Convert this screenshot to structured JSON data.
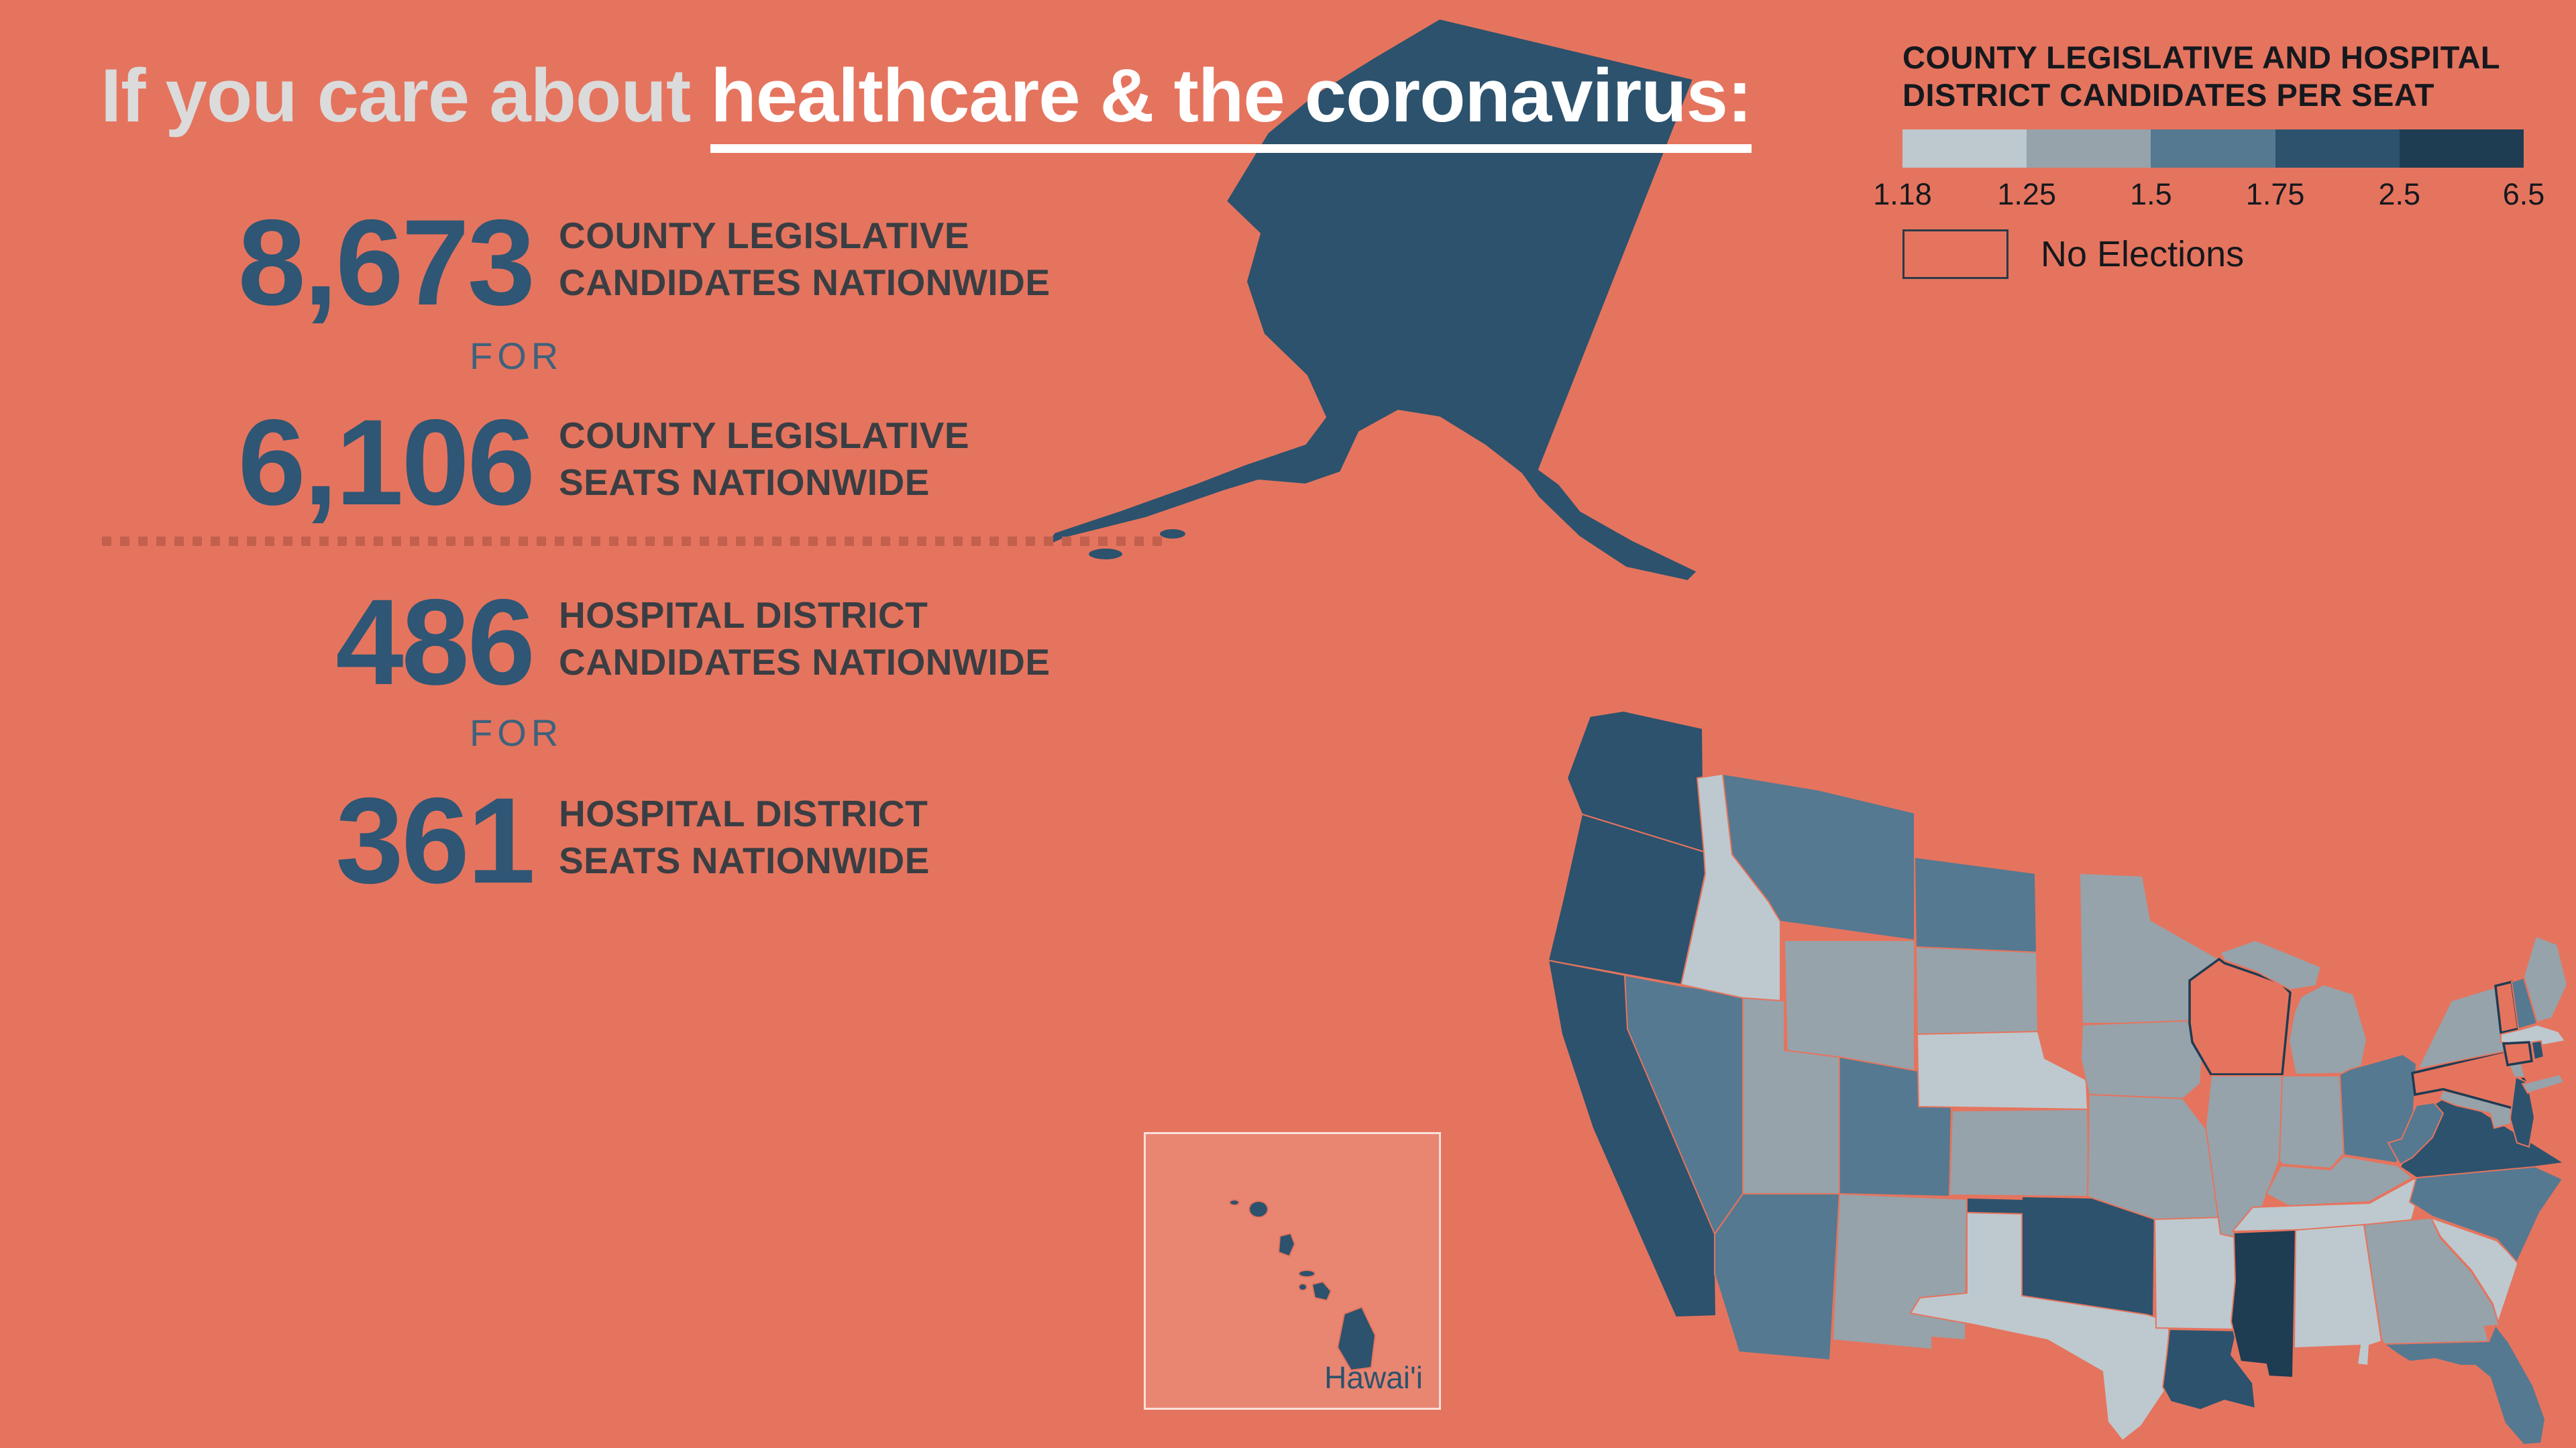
{
  "title": {
    "prefix": "If you care about ",
    "emphasis": "healthcare & the coronavirus:"
  },
  "stats": [
    {
      "value": "8,673",
      "label_line1": "COUNTY LEGISLATIVE",
      "label_line2": "CANDIDATES NATIONWIDE"
    },
    {
      "value": "6,106",
      "label_line1": "COUNTY LEGISLATIVE",
      "label_line2": "SEATS NATIONWIDE"
    },
    {
      "value": "486",
      "label_line1": "HOSPITAL DISTRICT",
      "label_line2": "CANDIDATES NATIONWIDE"
    },
    {
      "value": "361",
      "label_line1": "HOSPITAL DISTRICT",
      "label_line2": "SEATS NATIONWIDE"
    }
  ],
  "connector": "FOR",
  "legend": {
    "title_line1": "COUNTY LEGISLATIVE AND HOSPITAL",
    "title_line2": "DISTRICT CANDIDATES PER SEAT",
    "ticks": [
      "1.18",
      "1.25",
      "1.5",
      "1.75",
      "2.5",
      "6.5"
    ],
    "bin_colors": [
      "#BDC9CF",
      "#96A3AB",
      "#557991",
      "#2C526D",
      "#1E3C52"
    ],
    "no_elections_label": "No Elections",
    "no_elections_fill": "#E5745E",
    "no_elections_border": "#2A3A46"
  },
  "map": {
    "background_color": "#E5745E",
    "state_border_color": "#E5745E",
    "no_election_border_color": "#1E3C52",
    "hawaii_label": "Hawai'i",
    "state_bins": {
      "WA": 4,
      "OR": 4,
      "CA": 4,
      "NV": 3,
      "ID": 1,
      "MT": 3,
      "WY": 2,
      "UT": 2,
      "CO": 3,
      "AZ": 3,
      "NM": 2,
      "ND": 3,
      "SD": 2,
      "NE": 1,
      "KS": 2,
      "OK": 4,
      "TX": 1,
      "MN": 2,
      "IA": 2,
      "MO": 2,
      "AR": 1,
      "LA": 4,
      "WI": "none",
      "IL": 2,
      "MI": 2,
      "IN": 2,
      "OH": 3,
      "KY": 2,
      "TN": 1,
      "MS": 5,
      "AL": 1,
      "GA": 2,
      "FL": 3,
      "SC": 1,
      "NC": 3,
      "VA": 4,
      "WV": 3,
      "MD": 2,
      "DE": 4,
      "PA": "none",
      "NJ": 4,
      "NY": 2,
      "VT": "none",
      "NH": 3,
      "ME": 2,
      "MA": 1,
      "CT": "none",
      "RI": 4,
      "AK": 4,
      "HI": 4
    }
  },
  "chart_data": {
    "type": "heatmap",
    "subtype": "us-choropleth",
    "title": "County legislative and hospital district candidates per seat",
    "legend_position": "top-right",
    "bins": [
      {
        "range": "1.18-1.25",
        "color": "#BDC9CF"
      },
      {
        "range": "1.25-1.5",
        "color": "#96A3AB"
      },
      {
        "range": "1.5-1.75",
        "color": "#557991"
      },
      {
        "range": "1.75-2.5",
        "color": "#2C526D"
      },
      {
        "range": "2.5-6.5",
        "color": "#1E3C52"
      },
      {
        "range": "No Elections",
        "color": "#E5745E"
      }
    ],
    "state_bin_index": {
      "WA": 4,
      "OR": 4,
      "CA": 4,
      "NV": 3,
      "ID": 1,
      "MT": 3,
      "WY": 2,
      "UT": 2,
      "CO": 3,
      "AZ": 3,
      "NM": 2,
      "ND": 3,
      "SD": 2,
      "NE": 1,
      "KS": 2,
      "OK": 4,
      "TX": 1,
      "MN": 2,
      "IA": 2,
      "MO": 2,
      "AR": 1,
      "LA": 4,
      "WI": "none",
      "IL": 2,
      "MI": 2,
      "IN": 2,
      "OH": 3,
      "KY": 2,
      "TN": 1,
      "MS": 5,
      "AL": 1,
      "GA": 2,
      "FL": 3,
      "SC": 1,
      "NC": 3,
      "VA": 4,
      "WV": 3,
      "MD": 2,
      "DE": 4,
      "PA": "none",
      "NJ": 4,
      "NY": 2,
      "VT": "none",
      "NH": 3,
      "ME": 2,
      "MA": 1,
      "CT": "none",
      "RI": 4,
      "AK": 4,
      "HI": 4
    },
    "callout_values": {
      "county_legislative_candidates_nationwide": 8673,
      "county_legislative_seats_nationwide": 6106,
      "hospital_district_candidates_nationwide": 486,
      "hospital_district_seats_nationwide": 361
    }
  }
}
